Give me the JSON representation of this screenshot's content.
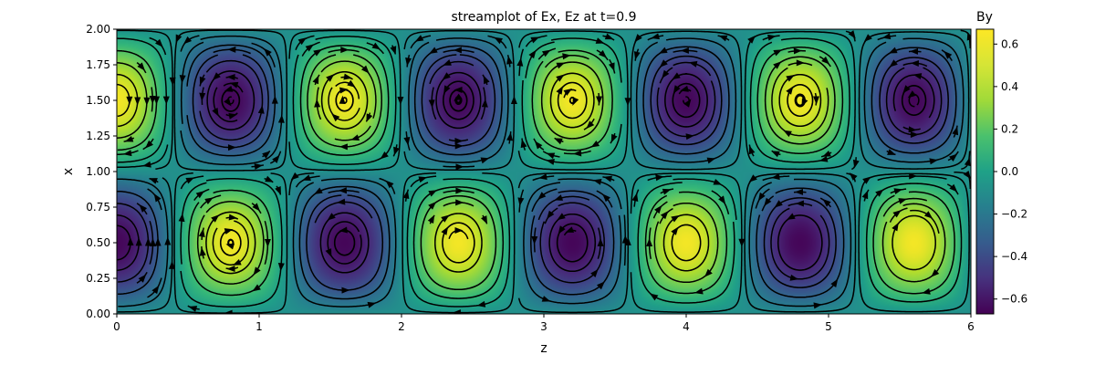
{
  "chart_data": {
    "type": "heatmap",
    "title": "streamplot of Ex, Ez at t=0.9",
    "xlabel": "z",
    "ylabel": "x",
    "xlim": [
      0,
      6
    ],
    "ylim": [
      0,
      2
    ],
    "xticks": [
      "0",
      "1",
      "2",
      "3",
      "4",
      "5",
      "6"
    ],
    "yticks": [
      "0.00",
      "0.25",
      "0.50",
      "0.75",
      "1.00",
      "1.25",
      "1.50",
      "1.75",
      "2.00"
    ],
    "field": {
      "name": "By",
      "formula": "By = 0.65 * sin(pi*x) * cos(2*pi*(z - 0.8)/1.6)",
      "period_z": 1.6,
      "amplitude": 0.65
    },
    "streamlines": {
      "components": [
        "Ex",
        "Ez"
      ],
      "color": "#000000"
    },
    "colorbar": {
      "label": "By",
      "colormap": "viridis",
      "range": [
        -0.67,
        0.67
      ],
      "ticks": [
        0.6,
        0.4,
        0.2,
        0.0,
        -0.2,
        -0.4,
        -0.6
      ],
      "tick_labels": [
        "0.6",
        "0.4",
        "0.2",
        "0.0",
        "−0.2",
        "−0.4",
        "−0.6"
      ]
    },
    "grid": false
  }
}
